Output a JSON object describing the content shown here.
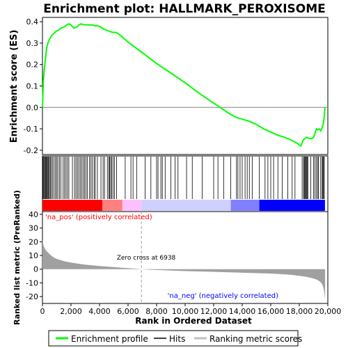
{
  "chart_data": {
    "type": "line",
    "title": "Enrichment plot: HALLMARK_PEROXISOME",
    "top_panel": {
      "ylabel": "Enrichment score (ES)",
      "ylim": [
        -0.22,
        0.42
      ],
      "yticks": [
        -0.2,
        -0.1,
        0.0,
        0.1,
        0.2,
        0.3,
        0.4
      ],
      "ytick_labels": [
        "-0.2",
        "-0.1",
        "0.0",
        "0.1",
        "0.2",
        "0.3",
        "0.4"
      ],
      "series": [
        {
          "name": "Enrichment profile",
          "color": "#00ff00",
          "x": [
            0,
            60,
            130,
            200,
            280,
            380,
            500,
            650,
            800,
            950,
            1100,
            1300,
            1500,
            1700,
            1850,
            2000,
            2200,
            2400,
            2550,
            2700,
            2900,
            3100,
            3300,
            3500,
            3700,
            3900,
            4100,
            4300,
            4500,
            4700,
            4900,
            5100,
            5300,
            6000,
            7000,
            8000,
            9000,
            10000,
            11000,
            12000,
            13000,
            13500,
            14000,
            14500,
            15000,
            15500,
            16000,
            16500,
            17000,
            17500,
            17800,
            18000,
            18100,
            18200,
            18300,
            18500,
            18700,
            18900,
            19000,
            19100,
            19200,
            19300,
            19400,
            19500,
            19600,
            19700,
            19750,
            19800
          ],
          "y": [
            0.0,
            0.12,
            0.18,
            0.22,
            0.27,
            0.3,
            0.32,
            0.335,
            0.345,
            0.355,
            0.36,
            0.37,
            0.375,
            0.385,
            0.39,
            0.385,
            0.37,
            0.375,
            0.385,
            0.39,
            0.385,
            0.385,
            0.385,
            0.385,
            0.38,
            0.38,
            0.375,
            0.365,
            0.36,
            0.355,
            0.35,
            0.35,
            0.345,
            0.305,
            0.255,
            0.205,
            0.16,
            0.115,
            0.065,
            0.02,
            -0.025,
            -0.045,
            -0.055,
            -0.065,
            -0.08,
            -0.1,
            -0.115,
            -0.13,
            -0.14,
            -0.155,
            -0.165,
            -0.175,
            -0.18,
            -0.165,
            -0.15,
            -0.14,
            -0.145,
            -0.145,
            -0.14,
            -0.12,
            -0.1,
            -0.105,
            -0.1,
            -0.11,
            -0.095,
            -0.07,
            -0.04,
            0.0
          ]
        }
      ]
    },
    "hits_panel": {
      "hit_ranks": [
        30,
        80,
        140,
        180,
        230,
        280,
        320,
        380,
        430,
        480,
        550,
        620,
        700,
        800,
        900,
        1000,
        1080,
        1200,
        1300,
        1450,
        1550,
        1650,
        1750,
        1850,
        2100,
        2250,
        2350,
        2450,
        2550,
        2650,
        2750,
        2850,
        2950,
        3050,
        3150,
        3300,
        3400,
        3500,
        3620,
        3700,
        3850,
        4100,
        4250,
        4350,
        4550,
        4650,
        4700,
        4780,
        4850,
        4950,
        5050,
        5200,
        5800,
        6200,
        6350,
        6600,
        7200,
        7600,
        8000,
        8100,
        8300,
        8400,
        8600,
        9000,
        9300,
        9500,
        10100,
        10500,
        11200,
        12000,
        12300,
        12700,
        13200,
        13600,
        13700,
        13850,
        14000,
        14200,
        14350,
        14500,
        14700,
        15200,
        15600,
        15800,
        16000,
        16200,
        16500,
        16800,
        17200,
        17500,
        17700,
        18200,
        18300,
        18350,
        18400,
        18450,
        18500,
        18550,
        18600,
        18800,
        19000,
        19100,
        19200,
        19300,
        19350,
        19500,
        19600,
        19650,
        19700,
        19750
      ],
      "bar_colors": [
        "#ff0000",
        "#ff8080",
        "#ffc0ff",
        "#d0d0ff",
        "#8080ff",
        "#0000ff"
      ]
    },
    "bottom_panel": {
      "ylabel": "Ranked list metric (PreRanked)",
      "xlabel": "Rank in Ordered Dataset",
      "ylim": [
        -25,
        42
      ],
      "yticks": [
        -20,
        -10,
        0,
        10,
        20,
        30,
        40
      ],
      "ytick_labels": [
        "-20",
        "-10",
        "0",
        "10",
        "20",
        "30",
        "40"
      ],
      "zero_cross_label": "Zero cross at 6938",
      "zero_cross": 6938,
      "pos_label": "'na_pos' (positively correlated)",
      "neg_label": "'na_neg' (negatively correlated)",
      "metric_color": "#a0a0a0",
      "metric_x": [
        0,
        20,
        60,
        120,
        200,
        300,
        450,
        600,
        800,
        1000,
        1300,
        1600,
        2000,
        2500,
        3000,
        3500,
        4000,
        4500,
        5000,
        5500,
        6000,
        6500,
        6938,
        7500,
        8500,
        9500,
        10500,
        11500,
        12500,
        13500,
        14500,
        15500,
        16500,
        17000,
        17500,
        18000,
        18500,
        18900,
        19200,
        19400,
        19550,
        19650,
        19720,
        19780,
        19810
      ],
      "metric_y": [
        22,
        20,
        18,
        16,
        14.5,
        13,
        11.5,
        10,
        8.5,
        7.5,
        6.5,
        5.6,
        4.8,
        4,
        3.3,
        2.8,
        2.3,
        1.9,
        1.5,
        1.1,
        0.8,
        0.4,
        0,
        -0.4,
        -0.8,
        -1.2,
        -1.5,
        -1.8,
        -2.1,
        -2.4,
        -2.7,
        -3.0,
        -3.5,
        -3.8,
        -4.2,
        -4.8,
        -5.6,
        -6.5,
        -7.5,
        -8.7,
        -10,
        -12,
        -15,
        -19,
        -23
      ]
    },
    "xlim": [
      0,
      20000
    ],
    "xticks": [
      0,
      2000,
      4000,
      6000,
      8000,
      10000,
      12000,
      14000,
      16000,
      18000,
      20000
    ],
    "xtick_labels": [
      "0",
      "2,000",
      "4,000",
      "6,000",
      "8,000",
      "10,000",
      "12,000",
      "14,000",
      "16,000",
      "18,000",
      "20,000"
    ],
    "legend": {
      "placement": "bottom",
      "items": [
        {
          "label": "Enrichment profile",
          "color": "#00ff00"
        },
        {
          "label": "Hits",
          "color": "#000000"
        },
        {
          "label": "Ranking metric scores",
          "color": "#c0c0c0"
        }
      ]
    }
  }
}
